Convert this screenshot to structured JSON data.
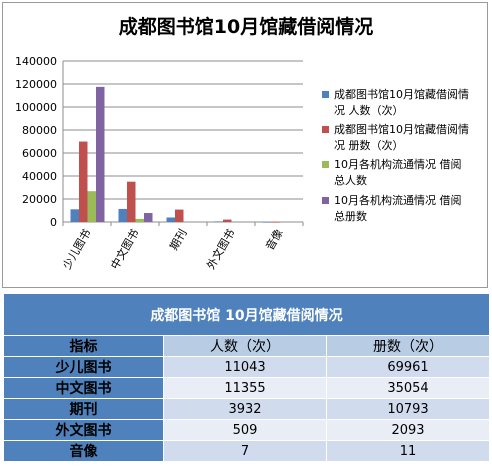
{
  "chart_data": {
    "type": "bar",
    "title": "成都图书馆10月馆藏借阅情况",
    "categories": [
      "少儿图书",
      "中文图书",
      "期刊",
      "外文图书",
      "音像"
    ],
    "series": [
      {
        "name": "成都图书馆10月馆藏借阅情况 人数（次）",
        "values": [
          11043,
          11355,
          3932,
          509,
          7
        ],
        "color": "#4f81bd"
      },
      {
        "name": "成都图书馆10月馆藏借阅情况 册数（次）",
        "values": [
          69961,
          35054,
          10793,
          2093,
          11
        ],
        "color": "#c0504d"
      },
      {
        "name": "10月各机构流通情况 借阅总人数",
        "values": [
          26800,
          2700,
          0,
          0,
          0
        ],
        "color": "#9bbb59"
      },
      {
        "name": "10月各机构流通情况 借阅总册数",
        "values": [
          117500,
          7800,
          0,
          0,
          0
        ],
        "color": "#8064a2"
      }
    ],
    "yticks": [
      "0",
      "20000",
      "40000",
      "60000",
      "80000",
      "100000",
      "120000",
      "140000"
    ],
    "ylim": [
      0,
      140000
    ],
    "grid": true,
    "legend_position": "right"
  },
  "table": {
    "title": "成都图书馆 10月馆藏借阅情况",
    "headers": [
      "指标",
      "人数（次）",
      "册数（次）"
    ],
    "rows": [
      {
        "label": "少儿图书",
        "people": "11043",
        "volumes": "69961"
      },
      {
        "label": "中文图书",
        "people": "11355",
        "volumes": "35054"
      },
      {
        "label": "期刊",
        "people": "3932",
        "volumes": "10793"
      },
      {
        "label": "外文图书",
        "people": "509",
        "volumes": "2093"
      },
      {
        "label": "音像",
        "people": "7",
        "volumes": "11"
      }
    ]
  }
}
